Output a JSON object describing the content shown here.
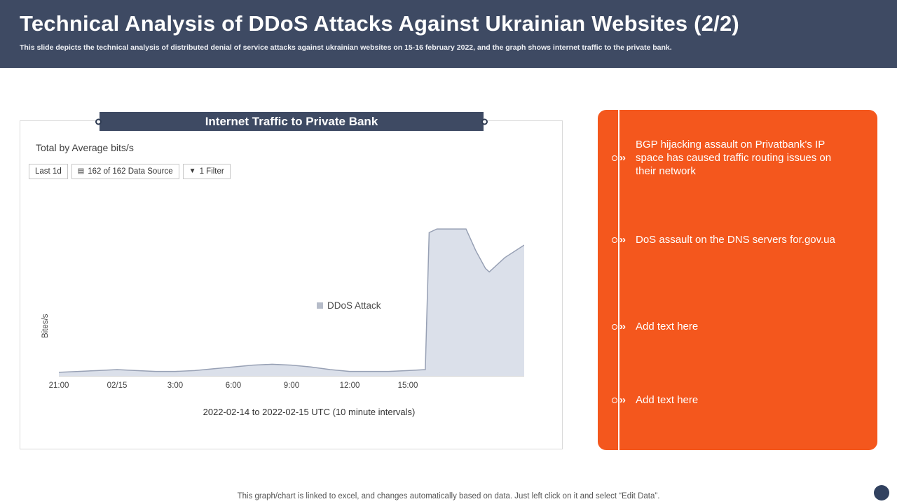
{
  "header": {
    "title": "Technical Analysis of DDoS Attacks Against Ukrainian Websites (2/2)",
    "subtitle": "This slide depicts the technical analysis of distributed denial of service attacks against ukrainian websites on 15-16 february 2022, and the graph shows internet traffic to the private bank."
  },
  "chart_panel": {
    "banner": "Internet Traffic to Private Bank",
    "metric_label": "Total by Average bits/s",
    "filters": [
      {
        "label": "Last 1d"
      },
      {
        "label": "162 of 162 Data Source"
      },
      {
        "label": "1 Filter"
      }
    ],
    "legend": "DDoS Attack",
    "ylabel": "Bites/s",
    "caption": "2022-02-14 to 2022-02-15 UTC (10 minute intervals)"
  },
  "icons": {
    "data_source": "▤",
    "funnel": "▼"
  },
  "chart_data": {
    "type": "area",
    "title": "Internet Traffic to Private Bank",
    "xlabel": "2022-02-14 to 2022-02-15 UTC (10 minute intervals)",
    "ylabel": "Bites/s",
    "x_unit": "hours after 21:00 UTC 2022-02-14",
    "x_range": [
      0,
      24
    ],
    "ylim": [
      0,
      100
    ],
    "y_unit": "relative traffic (unlabeled axis)",
    "grid": false,
    "legend_position": "center-right inside plot",
    "fill_color": "#dbe0ea",
    "line_color": "#97a0b4",
    "x_ticks": [
      {
        "label": "21:00",
        "x": 0
      },
      {
        "label": "02/15",
        "x": 3
      },
      {
        "label": "3:00",
        "x": 6
      },
      {
        "label": "6:00",
        "x": 9
      },
      {
        "label": "9:00",
        "x": 12
      },
      {
        "label": "12:00",
        "x": 15
      },
      {
        "label": "15:00",
        "x": 18
      }
    ],
    "series": [
      {
        "name": "DDoS Attack",
        "points": [
          [
            0,
            2
          ],
          [
            1,
            2.5
          ],
          [
            2,
            3
          ],
          [
            3,
            3.5
          ],
          [
            4,
            3
          ],
          [
            5,
            2.5
          ],
          [
            6,
            2.5
          ],
          [
            7,
            3
          ],
          [
            8,
            4
          ],
          [
            9,
            5
          ],
          [
            10,
            6
          ],
          [
            11,
            6.5
          ],
          [
            12,
            6
          ],
          [
            13,
            5
          ],
          [
            14,
            3.5
          ],
          [
            15,
            2.5
          ],
          [
            16,
            2.5
          ],
          [
            17,
            2.5
          ],
          [
            18,
            3
          ],
          [
            18.9,
            3.5
          ],
          [
            19.1,
            80
          ],
          [
            19.5,
            82
          ],
          [
            20,
            82
          ],
          [
            21,
            82
          ],
          [
            21.5,
            70
          ],
          [
            22,
            60
          ],
          [
            22.2,
            58
          ],
          [
            23,
            66
          ],
          [
            24,
            73
          ]
        ]
      }
    ]
  },
  "sidebar": {
    "items": [
      "BGP hijacking assault on Privatbank's IP space has caused traffic routing issues on their network",
      "DoS assault on the DNS servers for.gov.ua",
      "Add text here",
      "Add text here"
    ]
  },
  "footer": {
    "note": "This graph/chart is linked to excel, and changes automatically based on data. Just left click on it and select “Edit Data”."
  }
}
